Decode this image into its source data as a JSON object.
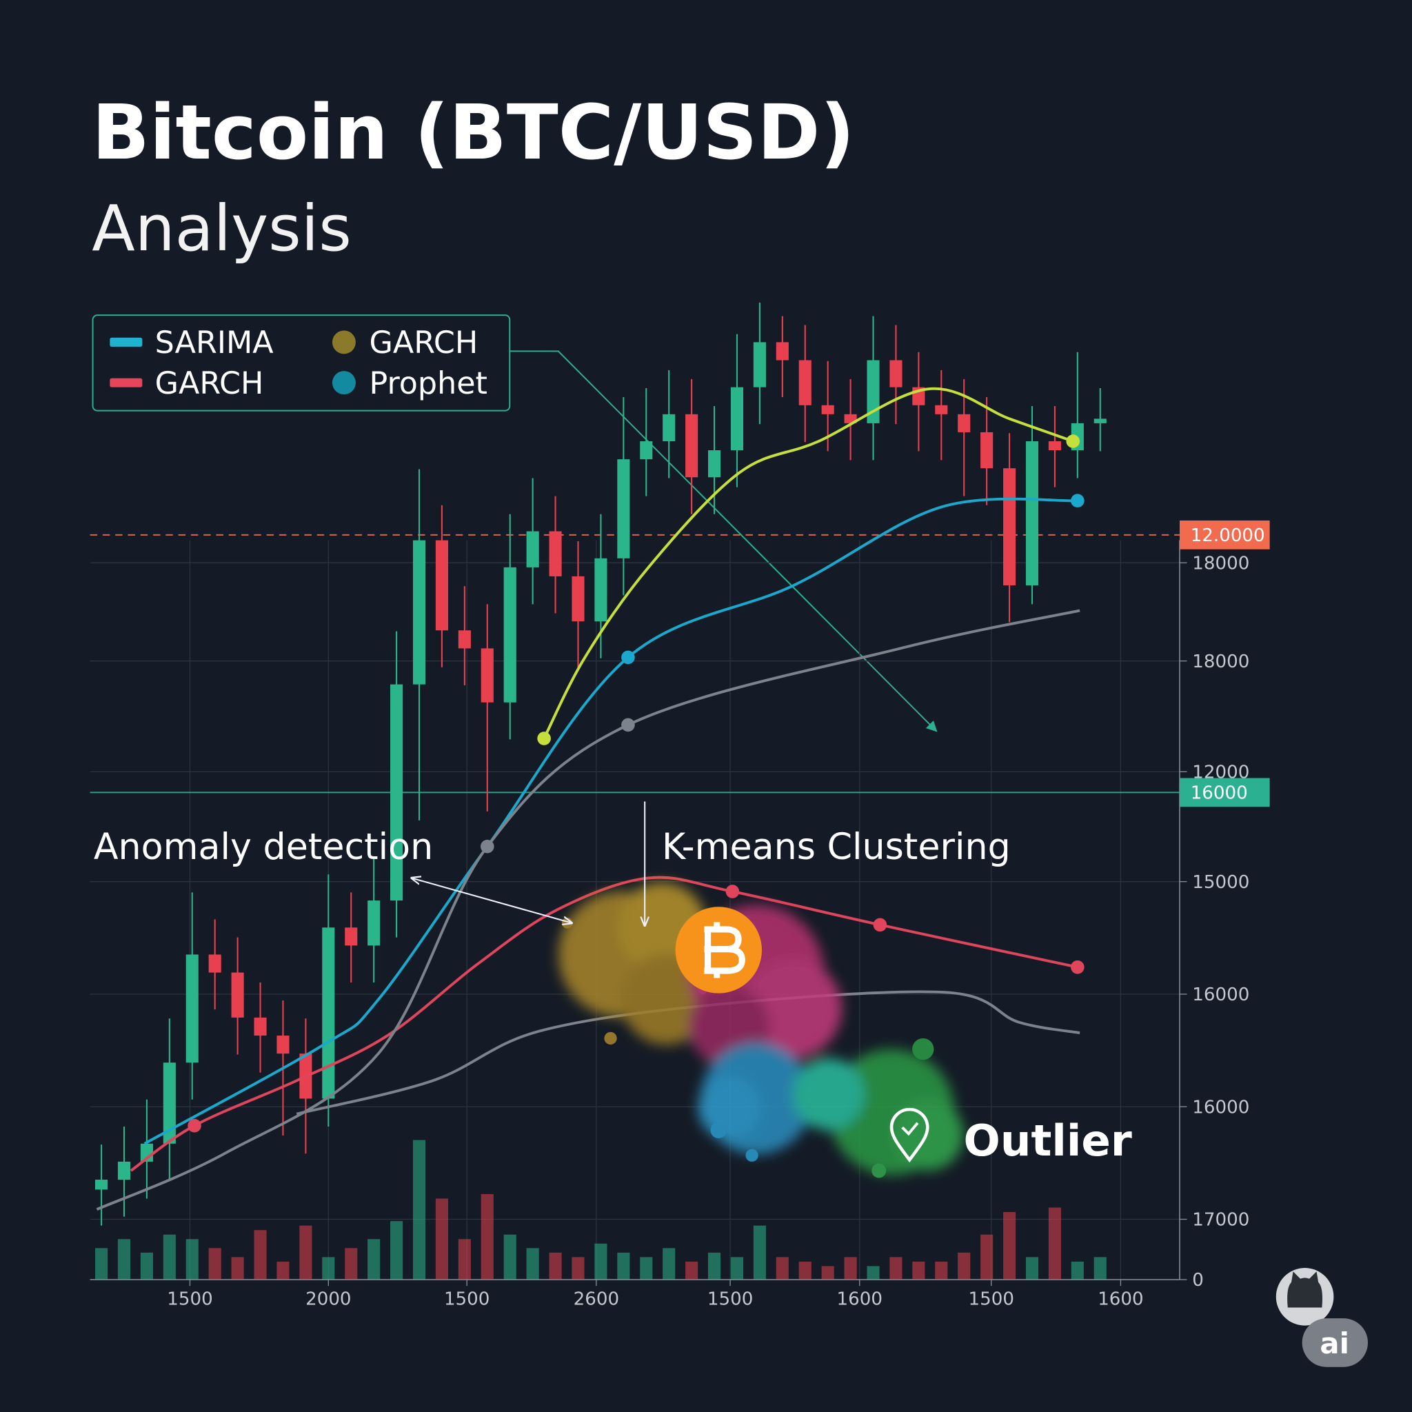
{
  "chart_data": {
    "type": "candlestick",
    "title": "Bitcoin (BTC/USD)",
    "subtitle": "Analysis",
    "x": [
      0.5,
      1.5,
      2.5,
      3.5,
      4.5,
      5.5,
      6.5,
      7.5,
      8.5,
      9.5,
      10.5,
      11.5,
      12.5,
      13.5,
      14.5,
      15.5,
      16.5,
      17.5,
      18.5,
      19.5,
      20.5,
      21.5,
      22.5,
      23.5,
      24.5,
      25.5,
      26.5,
      27.5,
      28.5,
      29.5,
      30.5,
      31.5,
      32.5,
      33.5,
      34.5,
      35.5,
      36.5,
      37.5,
      38.5,
      39.5,
      40.5,
      41.5,
      42.5,
      43.5,
      44.5
    ],
    "open": [
      2000,
      2220,
      2620,
      3020,
      4820,
      7220,
      6820,
      5820,
      5420,
      5020,
      4020,
      7820,
      7420,
      8420,
      13220,
      16420,
      14420,
      14020,
      12820,
      15820,
      16620,
      15620,
      14620,
      16020,
      18220,
      18620,
      19220,
      17820,
      18420,
      19820,
      20820,
      20420,
      19420,
      19220,
      19020,
      20420,
      19820,
      19420,
      19220,
      18820,
      18020,
      15420,
      18620,
      18420,
      19020
    ],
    "high": [
      3000,
      3400,
      4000,
      5800,
      8600,
      8000,
      7600,
      6600,
      6200,
      5800,
      9000,
      8600,
      9400,
      14400,
      18000,
      17200,
      15400,
      15000,
      17000,
      17800,
      17400,
      16400,
      17000,
      19600,
      19800,
      20200,
      20000,
      19400,
      21000,
      21700,
      21400,
      21200,
      20400,
      20000,
      21400,
      21200,
      20600,
      20200,
      20000,
      19600,
      18800,
      19400,
      19400,
      20600,
      19800
    ],
    "low": [
      1200,
      1400,
      1800,
      2200,
      4000,
      6000,
      5000,
      4600,
      3200,
      2800,
      3400,
      6600,
      6600,
      7600,
      10200,
      13600,
      13200,
      10400,
      12000,
      15000,
      14800,
      13600,
      13800,
      15200,
      17400,
      17800,
      17000,
      17000,
      17600,
      19000,
      19600,
      18600,
      18400,
      18200,
      18200,
      19000,
      18400,
      18200,
      17400,
      17200,
      14600,
      15000,
      17600,
      17800,
      18400
    ],
    "close": [
      2220,
      2620,
      3020,
      4820,
      7220,
      6820,
      5820,
      5420,
      5020,
      4020,
      7820,
      7420,
      8420,
      13220,
      16420,
      14420,
      14020,
      12820,
      15820,
      16620,
      15620,
      14620,
      16020,
      18220,
      18620,
      19220,
      17820,
      18420,
      19820,
      20820,
      20420,
      19420,
      19220,
      19020,
      20420,
      19820,
      19420,
      19220,
      18820,
      18020,
      15420,
      18620,
      18420,
      19020,
      19120
    ],
    "volume": [
      700,
      900,
      600,
      1000,
      900,
      700,
      500,
      1100,
      400,
      1200,
      500,
      700,
      900,
      1300,
      3100,
      1800,
      900,
      1900,
      1000,
      700,
      600,
      500,
      800,
      600,
      500,
      700,
      400,
      600,
      500,
      1200,
      500,
      400,
      300,
      500,
      300,
      500,
      400,
      400,
      600,
      1000,
      1500,
      500,
      1600,
      400,
      500
    ],
    "up_color": "#2bb58a",
    "down_color": "#e8404f",
    "xlim": [
      0,
      48
    ],
    "ylim": [
      0,
      22000
    ],
    "xticks": [
      {
        "value": 4.4,
        "label": "1500"
      },
      {
        "value": 10.5,
        "label": "2000"
      },
      {
        "value": 16.6,
        "label": "1500"
      },
      {
        "value": 22.3,
        "label": "2600"
      },
      {
        "value": 28.2,
        "label": "1500"
      },
      {
        "value": 33.9,
        "label": "1600"
      },
      {
        "value": 39.7,
        "label": "1500"
      },
      {
        "value": 45.4,
        "label": "1600"
      }
    ],
    "yticks": [
      0,
      {
        "value": 1340,
        "label": "17000"
      },
      {
        "value": 3840,
        "label": "16000"
      },
      {
        "value": 6340,
        "label": "16000"
      },
      {
        "value": 8840,
        "label": "15000"
      },
      {
        "value": 11280,
        "label": "12000"
      },
      {
        "value": 13740,
        "label": "18000"
      },
      {
        "value": 15920,
        "label": "18000"
      }
    ],
    "grid": true,
    "lines": [
      {
        "color": "#1aa9cc",
        "x": [
          2.4,
          10.3,
          12.7,
          17.5,
          23.7,
          31.0,
          37.5,
          43.5
        ],
        "values": [
          3020,
          5220,
          6220,
          9620,
          13820,
          15420,
          17160,
          17300
        ],
        "markers": [
          4,
          7
        ]
      },
      {
        "color": "#e0455c",
        "x": [
          1.8,
          4.6,
          9.1,
          13.1,
          17.1,
          20.6,
          24.6,
          28.3,
          34.8,
          43.5
        ],
        "values": [
          2420,
          3420,
          4420,
          5420,
          7020,
          8220,
          8920,
          8620,
          7880,
          6940
        ],
        "markers": [
          1,
          7,
          8,
          9
        ]
      },
      {
        "color": "#c5e03a",
        "x": [
          20.0,
          21.8,
          24.6,
          28.6,
          32.1,
          36.9,
          40.5,
          43.3
        ],
        "values": [
          12020,
          13820,
          15820,
          17920,
          18620,
          19780,
          19120,
          18620
        ],
        "markers": [
          0,
          7
        ]
      },
      {
        "color": "#7d838c",
        "x": [
          0.3,
          6.0,
          12.7,
          17.5,
          23.7,
          35.7,
          43.6
        ],
        "values": [
          1560,
          2820,
          5020,
          9620,
          12320,
          14020,
          14860
        ],
        "markers": [
          3,
          4
        ]
      },
      {
        "color": "#7d838c",
        "x": [
          9.1,
          15.1,
          19.8,
          27.8,
          37.7,
          40.9,
          43.6
        ],
        "values": [
          3680,
          4420,
          5520,
          6120,
          6380,
          5720,
          5480
        ],
        "markers": []
      }
    ],
    "legend": [
      {
        "label": "SARIMA",
        "color": "#1fb3d1",
        "marker": "line"
      },
      {
        "label": "GARCH",
        "color": "#e8445a",
        "marker": "line"
      },
      {
        "label": "GARCH",
        "color": "#8a7a2a",
        "marker": "dot"
      },
      {
        "label": "Prophet",
        "color": "#138aa0",
        "marker": "dot"
      }
    ],
    "hlines": [
      {
        "value": 16540,
        "label": "12.0000",
        "color": "#f26b4f",
        "dashed": true
      },
      {
        "value": 10820,
        "label": "16000",
        "color": "#2bb191",
        "dashed": false
      }
    ],
    "annotations": [
      "Anomaly detection",
      "K-means Clustering",
      "Outlier"
    ]
  },
  "badge": "ai"
}
